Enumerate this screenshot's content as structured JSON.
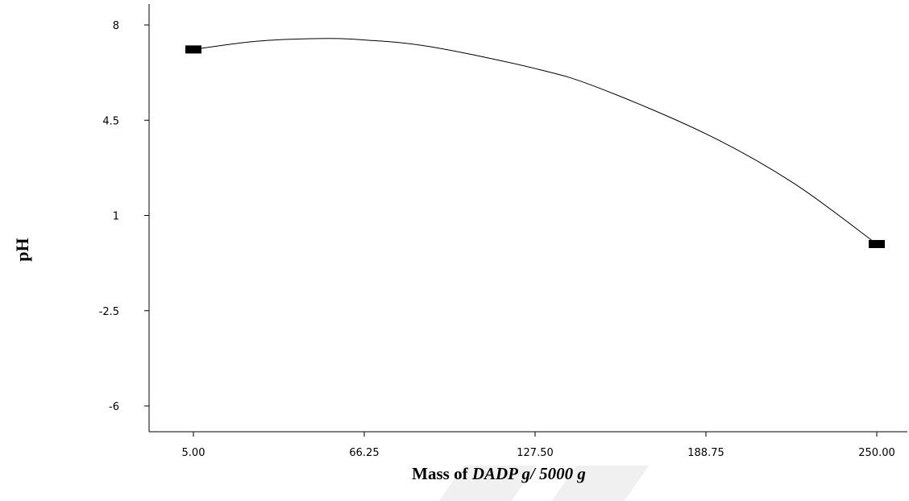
{
  "chart_data": {
    "type": "line",
    "title": "",
    "ylabel": "pH",
    "xlabel_prefix": "Mass of ",
    "xlabel_italic": "DADP g/ 5000 g",
    "xlim": [
      5,
      250
    ],
    "ylim": [
      -6,
      8
    ],
    "x_ticks": [
      "5.00",
      "66.25",
      "127.50",
      "188.75",
      "250.00"
    ],
    "x_tick_values": [
      5,
      66.25,
      127.5,
      188.75,
      250
    ],
    "y_ticks": [
      "8",
      "4.5",
      "1",
      "-2.5",
      "-6"
    ],
    "y_tick_values": [
      8,
      4.5,
      1,
      -2.5,
      -6
    ],
    "grid": false,
    "series": [
      {
        "x": [
          5,
          27.5,
          50,
          66.25,
          90,
          127.5,
          150,
          188.75,
          220,
          250
        ],
        "y": [
          7.1,
          7.4,
          7.5,
          7.45,
          7.2,
          6.4,
          5.7,
          4.0,
          2.2,
          -0.05
        ]
      }
    ],
    "design_points": [
      {
        "x": 5,
        "y": 7.1
      },
      {
        "x": 250,
        "y": -0.05
      }
    ],
    "line_color": "#000000",
    "marker_color": "#000000"
  }
}
